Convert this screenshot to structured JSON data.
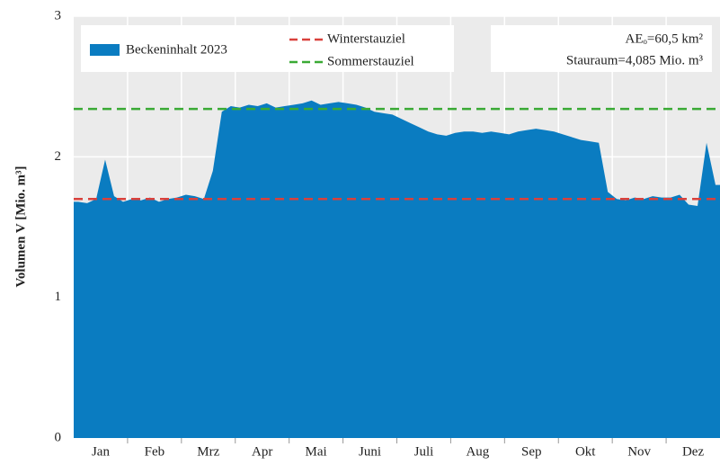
{
  "chart_data": {
    "type": "area",
    "categories": [
      "Jan",
      "Feb",
      "Mrz",
      "Apr",
      "Mai",
      "Juni",
      "Juli",
      "Aug",
      "Sep",
      "Okt",
      "Nov",
      "Dez"
    ],
    "series": [
      {
        "name": "Beckeninhalt 2023",
        "color": "#0a7cc1",
        "values": [
          [
            1.68,
            1.67,
            1.7,
            1.98,
            1.72,
            1.68
          ],
          [
            1.7,
            1.69,
            1.71,
            1.68,
            1.7,
            1.71
          ],
          [
            1.73,
            1.72,
            1.7,
            1.9,
            2.32,
            2.36
          ],
          [
            2.35,
            2.37,
            2.36,
            2.38,
            2.35,
            2.36
          ],
          [
            2.37,
            2.38,
            2.4,
            2.37,
            2.38,
            2.39
          ],
          [
            2.38,
            2.37,
            2.35,
            2.32,
            2.31,
            2.3
          ],
          [
            2.27,
            2.24,
            2.21,
            2.18,
            2.16,
            2.15
          ],
          [
            2.17,
            2.18,
            2.18,
            2.17,
            2.18,
            2.17
          ],
          [
            2.16,
            2.18,
            2.19,
            2.2,
            2.19,
            2.18
          ],
          [
            2.16,
            2.14,
            2.12,
            2.11,
            2.1,
            1.75
          ],
          [
            1.7,
            1.69,
            1.71,
            1.7,
            1.72,
            1.71
          ],
          [
            1.71,
            1.73,
            1.66,
            1.65,
            2.1,
            1.8
          ]
        ]
      }
    ],
    "reference_lines": [
      {
        "name": "Winterstauziel",
        "value": 1.7,
        "color": "#d9413c"
      },
      {
        "name": "Sommerstauziel",
        "value": 2.34,
        "color": "#3aaa35"
      }
    ],
    "ylabel": "Volumen V [Mio. m³]",
    "annotations": [
      "AEₒ=60,5 km²",
      "Stauraum=4,085 Mio. m³"
    ],
    "ylim": [
      0,
      3
    ],
    "yticks": [
      0,
      1,
      2,
      3
    ],
    "grid": true
  }
}
